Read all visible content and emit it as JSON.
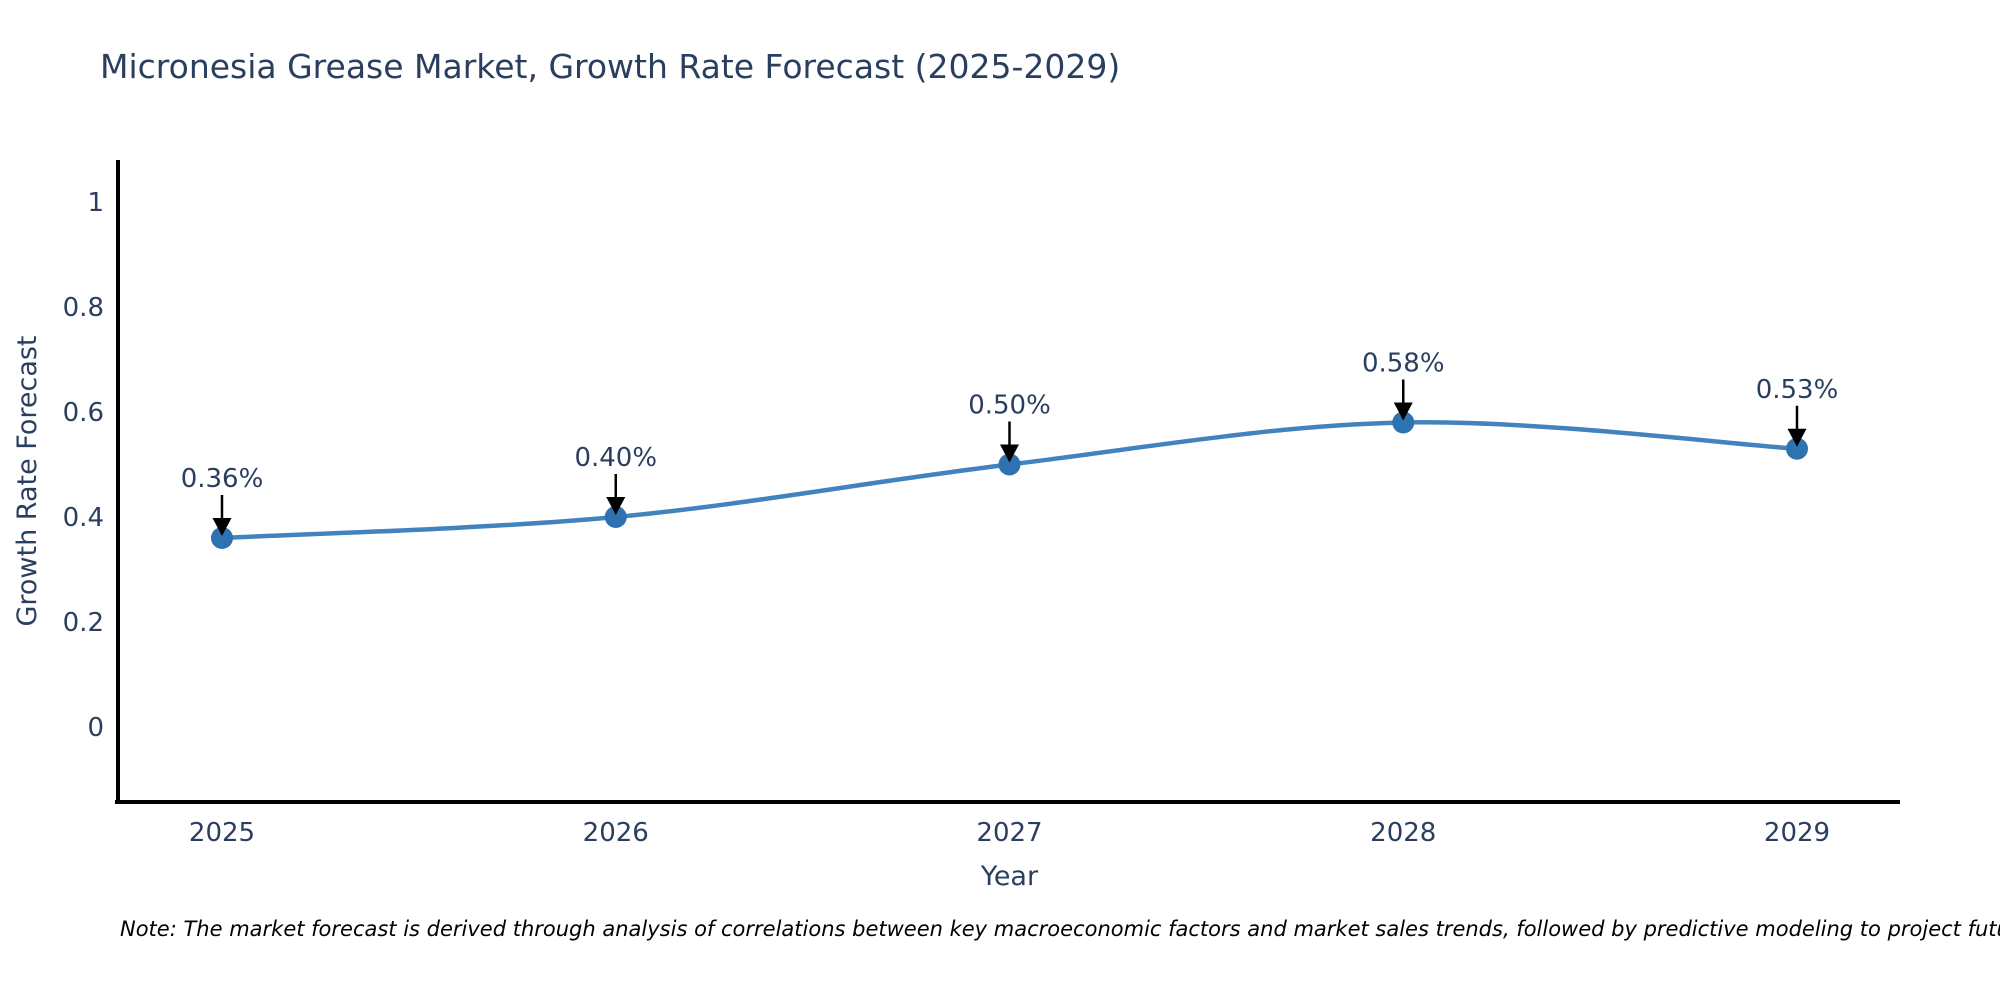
{
  "page": {
    "background": "#ffffff"
  },
  "chart_data": {
    "type": "line",
    "title": "Micronesia Grease Market, Growth Rate Forecast (2025-2029)",
    "xlabel": "Year",
    "ylabel": "Growth Rate Forecast",
    "categories": [
      "2025",
      "2026",
      "2027",
      "2028",
      "2029"
    ],
    "values": [
      0.36,
      0.4,
      0.5,
      0.58,
      0.53
    ],
    "point_labels": [
      "0.36%",
      "0.40%",
      "0.50%",
      "0.58%",
      "0.53%"
    ],
    "ytick_labels": [
      "0",
      "0.2",
      "0.4",
      "0.6",
      "0.8",
      "1"
    ],
    "ylim": [
      -0.14,
      1.08
    ],
    "grid": false,
    "legend": "none",
    "line_smoothing": "spline",
    "line_color": "#4283bd",
    "marker_color": "#2f72b2",
    "text_color": "#2a3f5f",
    "axis_color": "#000000",
    "annotation_arrow_color": "#000000"
  },
  "note": {
    "text": "Note: The market forecast is derived through analysis of correlations between key macroeconomic factors and market sales trends, followed by predictive modeling to project future sales"
  }
}
